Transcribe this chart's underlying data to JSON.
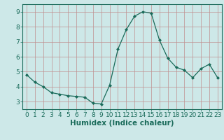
{
  "x": [
    0,
    1,
    2,
    3,
    4,
    5,
    6,
    7,
    8,
    9,
    10,
    11,
    12,
    13,
    14,
    15,
    16,
    17,
    18,
    19,
    20,
    21,
    22,
    23
  ],
  "y": [
    4.8,
    4.3,
    4.0,
    3.6,
    3.5,
    3.4,
    3.35,
    3.3,
    2.9,
    2.85,
    4.1,
    6.5,
    7.8,
    8.7,
    9.0,
    8.9,
    7.1,
    5.9,
    5.3,
    5.1,
    4.6,
    5.2,
    5.5,
    4.6
  ],
  "line_color": "#1a6b5a",
  "marker": "D",
  "marker_size": 2,
  "bg_color": "#cde8e8",
  "grid_color": "#c09090",
  "xlabel": "Humidex (Indice chaleur)",
  "ylim": [
    2.5,
    9.5
  ],
  "xlim": [
    -0.5,
    23.5
  ],
  "yticks": [
    3,
    4,
    5,
    6,
    7,
    8,
    9
  ],
  "xticks": [
    0,
    1,
    2,
    3,
    4,
    5,
    6,
    7,
    8,
    9,
    10,
    11,
    12,
    13,
    14,
    15,
    16,
    17,
    18,
    19,
    20,
    21,
    22,
    23
  ],
  "xlabel_fontsize": 7.5,
  "tick_fontsize": 6.5,
  "linewidth": 0.9
}
